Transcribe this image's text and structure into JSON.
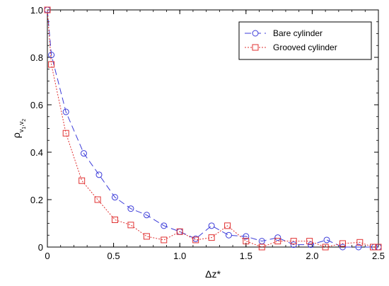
{
  "chart_data": {
    "type": "line",
    "xlabel": "Δz*",
    "ylabel": {
      "main": "ρ",
      "sub1": "v",
      "sub1_index": "1",
      "comma": ",",
      "sub2": "v",
      "sub2_index": "2"
    },
    "xlim": [
      0,
      2.5
    ],
    "ylim": [
      0,
      1.0
    ],
    "xticks": [
      0,
      0.5,
      1.0,
      1.5,
      2.0,
      2.5
    ],
    "xtick_labels": [
      "0",
      "0.5",
      "1.0",
      "1.5",
      "2.0",
      "2.5"
    ],
    "yticks": [
      0,
      0.2,
      0.4,
      0.6,
      0.8,
      1.0
    ],
    "ytick_labels": [
      "0",
      "0.2",
      "0.4",
      "0.6",
      "0.8",
      "1.0"
    ],
    "grid": false,
    "legend_position": "top-right",
    "series": [
      {
        "name": "Bare cylinder",
        "color": "#3b3bd9",
        "marker": "circle",
        "line_style": "long-dash",
        "x": [
          0.0,
          0.03,
          0.14,
          0.275,
          0.39,
          0.51,
          0.63,
          0.75,
          0.88,
          1.0,
          1.12,
          1.24,
          1.37,
          1.5,
          1.62,
          1.74,
          1.86,
          1.99,
          2.11,
          2.23,
          2.35,
          2.47,
          2.5
        ],
        "y": [
          1.0,
          0.81,
          0.57,
          0.395,
          0.305,
          0.21,
          0.162,
          0.135,
          0.09,
          0.065,
          0.035,
          0.09,
          0.05,
          0.045,
          0.025,
          0.04,
          0.01,
          0.01,
          0.03,
          0.0,
          0.0,
          0.0,
          0.0
        ]
      },
      {
        "name": "Grooved cylinder",
        "color": "#e03030",
        "marker": "square",
        "line_style": "dotted",
        "x": [
          0.0,
          0.03,
          0.14,
          0.26,
          0.38,
          0.51,
          0.63,
          0.75,
          0.88,
          1.0,
          1.12,
          1.24,
          1.36,
          1.5,
          1.62,
          1.74,
          1.86,
          1.98,
          2.1,
          2.23,
          2.36,
          2.46,
          2.5
        ],
        "y": [
          1.0,
          0.77,
          0.48,
          0.28,
          0.2,
          0.115,
          0.093,
          0.045,
          0.03,
          0.065,
          0.03,
          0.04,
          0.09,
          0.025,
          0.0,
          0.025,
          0.025,
          0.025,
          0.0,
          0.015,
          0.02,
          0.0,
          0.0
        ]
      }
    ]
  }
}
